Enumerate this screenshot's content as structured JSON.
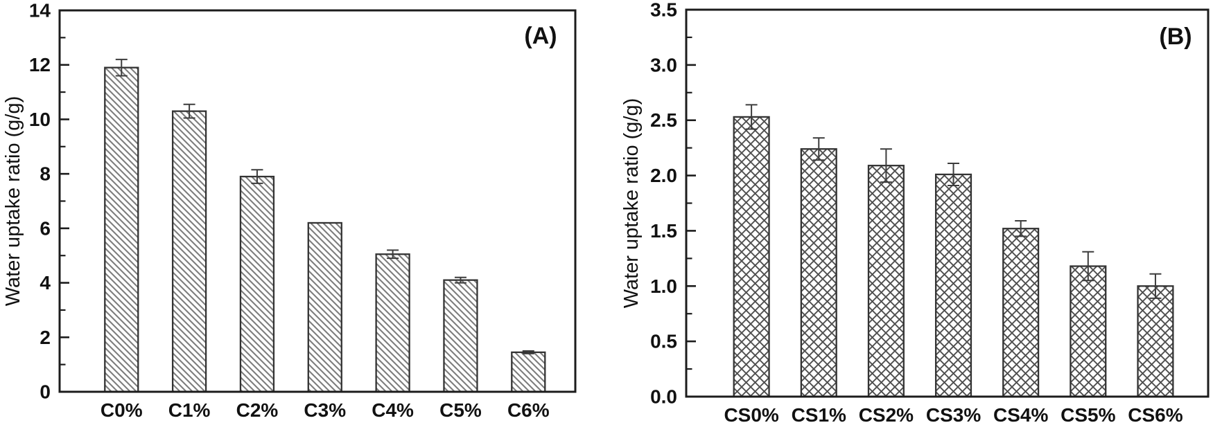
{
  "figure": {
    "background": "#ffffff",
    "kind": "two-panel scientific bar chart figure"
  },
  "colors": {
    "axis": "#1c1c1c",
    "bar_outline": "#333333",
    "hatch_diagonal": "#7d7d7d",
    "hatch_cross": "#4f4f4f",
    "error_bar": "#3c3c3c",
    "text": "#111111",
    "background": "#ffffff"
  },
  "chart_data": [
    {
      "id": "A",
      "type": "bar",
      "panel_label": "(A)",
      "title": "",
      "xlabel": "",
      "ylabel": "Water uptake ratio (g/g)",
      "categories": [
        "C0%",
        "C1%",
        "C2%",
        "C3%",
        "C4%",
        "C5%",
        "C6%"
      ],
      "values": [
        11.9,
        10.3,
        7.9,
        6.2,
        5.05,
        4.1,
        1.45
      ],
      "errors": [
        0.3,
        0.25,
        0.25,
        0,
        0.15,
        0.1,
        0.05
      ],
      "ylim": [
        0,
        14
      ],
      "ytick_step": 2,
      "ytick_labels": [
        "0",
        "2",
        "4",
        "6",
        "8",
        "10",
        "12",
        "14"
      ],
      "tick_decimals": 0,
      "minor_ticks_between_majors": 1,
      "hatch": "diagonal",
      "grid": false,
      "legend": "none",
      "error_bars": true,
      "frame": "closed-box",
      "tick_direction": "in"
    },
    {
      "id": "B",
      "type": "bar",
      "panel_label": "(B)",
      "title": "",
      "xlabel": "",
      "ylabel": "Water uptake ratio (g/g)",
      "categories": [
        "CS0%",
        "CS1%",
        "CS2%",
        "CS3%",
        "CS4%",
        "CS5%",
        "CS6%"
      ],
      "values": [
        2.53,
        2.24,
        2.09,
        2.01,
        1.52,
        1.18,
        1.0
      ],
      "errors": [
        0.11,
        0.1,
        0.15,
        0.1,
        0.07,
        0.13,
        0.11
      ],
      "ylim": [
        0,
        3.5
      ],
      "ytick_step": 0.5,
      "ytick_labels": [
        "0.0",
        "0.5",
        "1.0",
        "1.5",
        "2.0",
        "2.5",
        "3.0",
        "3.5"
      ],
      "tick_decimals": 1,
      "minor_ticks_between_majors": 1,
      "hatch": "crosshatch",
      "grid": false,
      "legend": "none",
      "error_bars": true,
      "frame": "closed-box",
      "tick_direction": "in"
    }
  ]
}
